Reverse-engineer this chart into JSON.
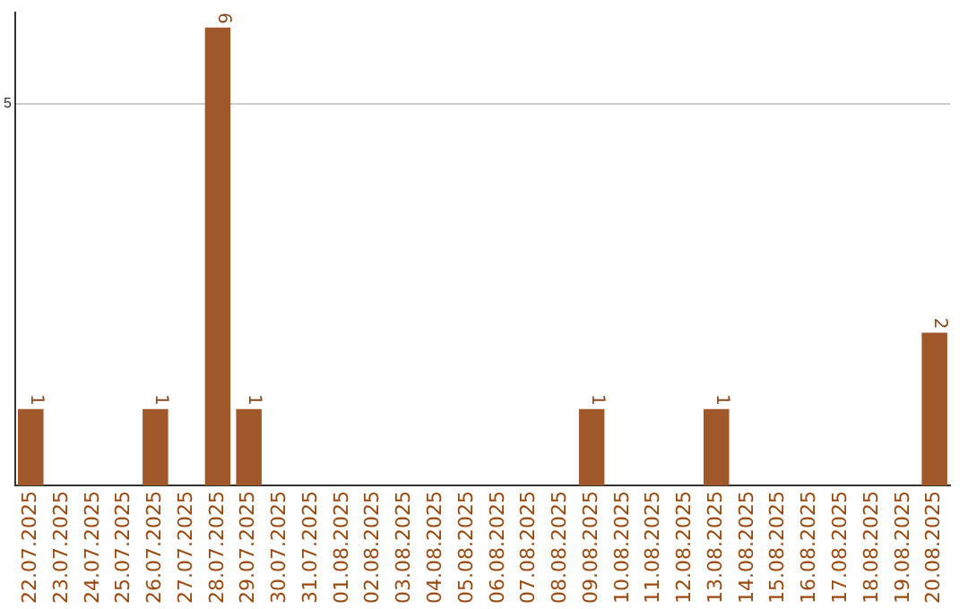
{
  "chart_data": {
    "type": "bar",
    "categories": [
      "22.07.2025",
      "23.07.2025",
      "24.07.2025",
      "25.07.2025",
      "26.07.2025",
      "27.07.2025",
      "28.07.2025",
      "29.07.2025",
      "30.07.2025",
      "31.07.2025",
      "01.08.2025",
      "02.08.2025",
      "03.08.2025",
      "04.08.2025",
      "05.08.2025",
      "06.08.2025",
      "07.08.2025",
      "08.08.2025",
      "09.08.2025",
      "10.08.2025",
      "11.08.2025",
      "12.08.2025",
      "13.08.2025",
      "14.08.2025",
      "15.08.2025",
      "16.08.2025",
      "17.08.2025",
      "18.08.2025",
      "19.08.2025",
      "20.08.2025"
    ],
    "values": [
      1,
      0,
      0,
      0,
      1,
      0,
      6,
      1,
      0,
      0,
      0,
      0,
      0,
      0,
      0,
      0,
      0,
      0,
      1,
      0,
      0,
      0,
      1,
      0,
      0,
      0,
      0,
      0,
      0,
      2
    ],
    "value_labels": [
      "1",
      null,
      null,
      null,
      "1",
      null,
      "6",
      "1",
      null,
      null,
      null,
      null,
      null,
      null,
      null,
      null,
      null,
      null,
      "1",
      null,
      null,
      null,
      "1",
      null,
      null,
      null,
      null,
      null,
      null,
      "2"
    ],
    "color": "#a0572a",
    "ylim": [
      0,
      6.2
    ],
    "yticks": [
      5
    ],
    "grid": "y",
    "legend": false
  }
}
